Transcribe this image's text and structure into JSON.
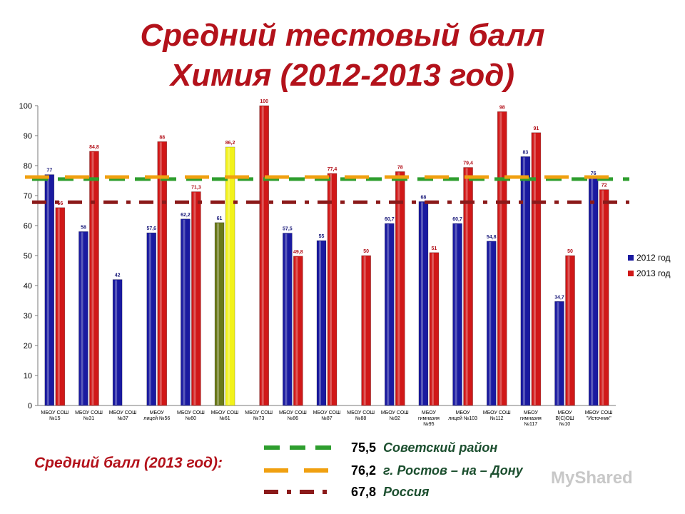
{
  "title": {
    "line1": "Средний тестовый балл",
    "line2": "Химия (2012-2013 год)"
  },
  "footer": {
    "label": "Средний балл (2013 год):",
    "references": [
      {
        "value": "75,5",
        "name": "Советский район",
        "color": "#2e9e2e",
        "style": "dashed"
      },
      {
        "value": "76,2",
        "name": "г. Ростов – на – Дону",
        "color": "#f0a010",
        "style": "dashed"
      },
      {
        "value": "67,8",
        "name": "Россия",
        "color": "#8b1a1a",
        "style": "dash-dot"
      }
    ]
  },
  "watermark": "MyShared",
  "chart_data": {
    "type": "bar",
    "ylim": [
      0,
      100
    ],
    "yticks": [
      0,
      10,
      20,
      30,
      40,
      50,
      60,
      70,
      80,
      90,
      100
    ],
    "legend_position": "right",
    "categories": [
      [
        "МБОУ СОШ",
        "№15"
      ],
      [
        "МБОУ СОШ",
        "№31"
      ],
      [
        "МБОУ СОШ",
        "№37"
      ],
      [
        "МБОУ",
        "лицей №56"
      ],
      [
        "МБОУ СОШ",
        "№60"
      ],
      [
        "МБОУ СОШ",
        "№61"
      ],
      [
        "МБОУ СОШ",
        "№73"
      ],
      [
        "МБОУ СОШ",
        "№86"
      ],
      [
        "МБОУ СОШ",
        "№87"
      ],
      [
        "МБОУ СОШ",
        "№88"
      ],
      [
        "МБОУ СОШ",
        "№92"
      ],
      [
        "МБОУ",
        "гимназия",
        "№95"
      ],
      [
        "МБОУ",
        "лицей №103"
      ],
      [
        "МБОУ СОШ",
        "№112"
      ],
      [
        "МБОУ",
        "гимназия",
        "№117"
      ],
      [
        "МБОУ",
        "В(С)ОШ",
        "№10"
      ],
      [
        "МБОУ СОШ",
        "\"Источник\""
      ]
    ],
    "series": [
      {
        "name": "2012 год",
        "color": "#1a1aa0",
        "values": [
          77,
          58,
          42,
          57.6,
          62.2,
          61,
          null,
          57.5,
          55,
          null,
          60.7,
          68,
          60.7,
          54.8,
          83,
          34.7,
          76
        ],
        "labels": [
          "77",
          "58",
          "42",
          "57,6",
          "62,2",
          "61",
          "",
          "57,5",
          "55",
          "",
          "60,7",
          "68",
          "60,7",
          "54,8",
          "83",
          "34,7",
          "76"
        ]
      },
      {
        "name": "2013 год",
        "color": "#d01818",
        "values": [
          66,
          84.8,
          null,
          88,
          71.3,
          86.2,
          100,
          49.8,
          77.4,
          50,
          78,
          51,
          79.4,
          98,
          91,
          50,
          72
        ],
        "labels": [
          "66",
          "84,8",
          "",
          "88",
          "71,3",
          "86,2",
          "100",
          "49,8",
          "77,4",
          "50",
          "78",
          "51",
          "79,4",
          "98",
          "91",
          "50",
          "72"
        ]
      }
    ],
    "highlight": {
      "category_index": 5,
      "colors": {
        "2012 год": "#6b7a1a",
        "2013 год": "#f2f21a"
      }
    },
    "reference_lines": [
      {
        "value": 75.5,
        "color": "#2e9e2e",
        "style": "dashed"
      },
      {
        "value": 76.2,
        "color": "#f0a010",
        "style": "dashed"
      },
      {
        "value": 67.8,
        "color": "#8b1a1a",
        "style": "dash-dot"
      }
    ]
  }
}
